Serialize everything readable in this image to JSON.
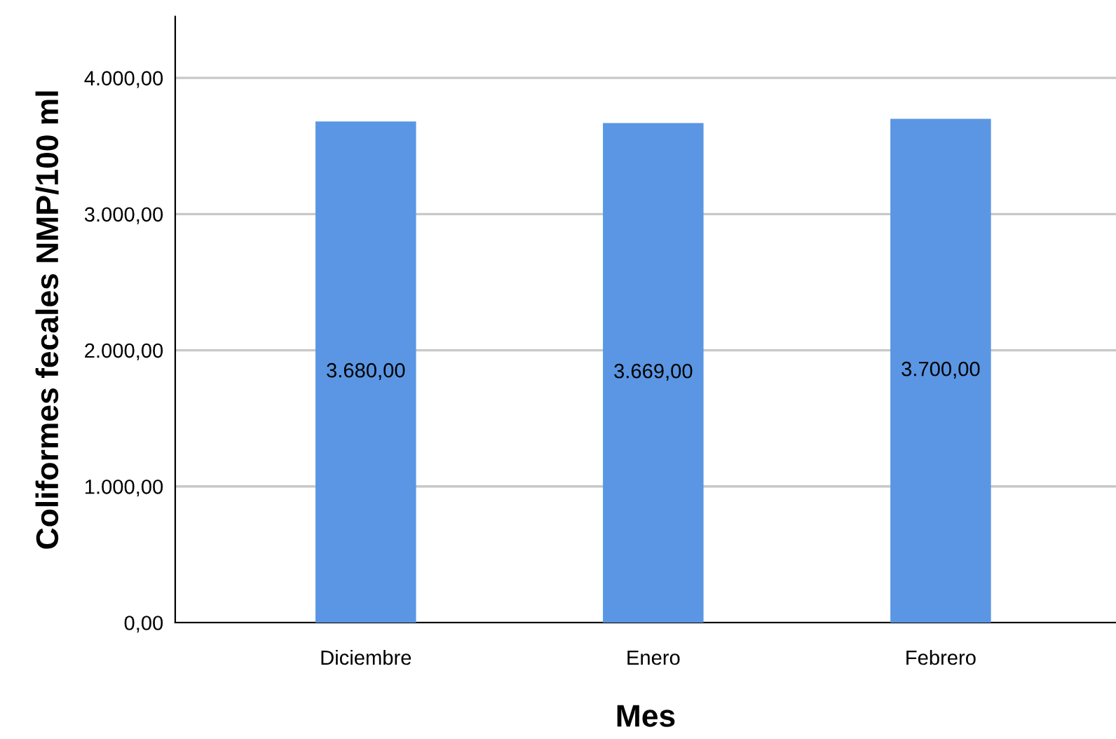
{
  "chart_data": {
    "type": "bar",
    "xlabel": "Mes",
    "ylabel": "Coliformes fecales NMP/100 ml",
    "categories": [
      "Diciembre",
      "Enero",
      "Febrero"
    ],
    "values": [
      3680,
      3669,
      3700
    ],
    "value_labels": [
      "3.680,00",
      "3.669,00",
      "3.700,00"
    ],
    "color": "#5a96e3",
    "ylim": [
      0,
      4450
    ],
    "yticks": [
      {
        "value": 0,
        "label": "0,00"
      },
      {
        "value": 1000,
        "label": "1.000,00"
      },
      {
        "value": 2000,
        "label": "2.000,00"
      },
      {
        "value": 3000,
        "label": "3.000,00"
      },
      {
        "value": 4000,
        "label": "4.000,00"
      }
    ],
    "grid": "y",
    "legend": false
  }
}
